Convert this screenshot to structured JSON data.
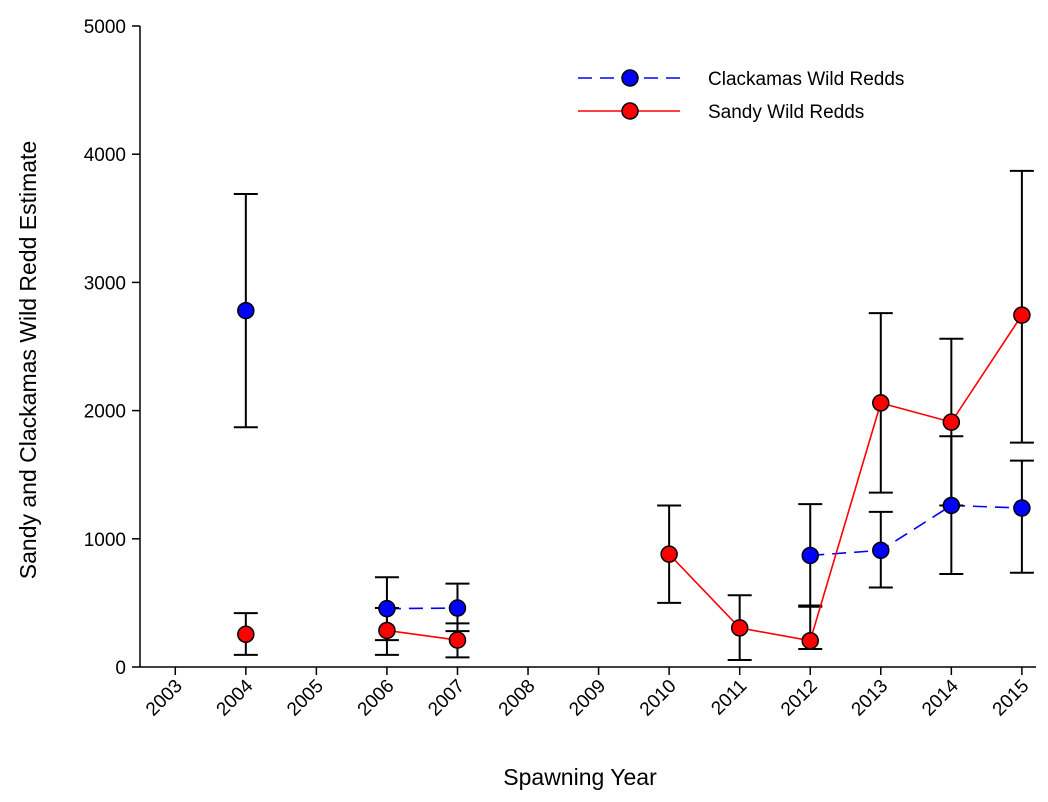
{
  "chart_data": {
    "type": "line",
    "x_label": "Spawning Year",
    "y_label": "Sandy and Clackamas Wild Redd Estimate",
    "x": [
      2003,
      2004,
      2005,
      2006,
      2007,
      2008,
      2009,
      2010,
      2011,
      2012,
      2013,
      2014,
      2015
    ],
    "xlim": [
      2002.5,
      2015.2
    ],
    "xticks": [
      2003,
      2004,
      2005,
      2006,
      2007,
      2008,
      2009,
      2010,
      2011,
      2012,
      2013,
      2014,
      2015
    ],
    "ylim": [
      0,
      5000
    ],
    "yticks": [
      0,
      1000,
      2000,
      3000,
      4000,
      5000
    ],
    "grid": false,
    "legend": "upper right",
    "series": [
      {
        "name": "Clackamas Wild Redds",
        "color": "#0000ff",
        "line_style": "dashed",
        "values": [
          null,
          2780,
          null,
          455,
          460,
          null,
          null,
          null,
          null,
          870,
          910,
          1260,
          1240
        ],
        "lower": [
          null,
          1870,
          null,
          210,
          280,
          null,
          null,
          null,
          null,
          470,
          620,
          725,
          735
        ],
        "upper": [
          null,
          3690,
          null,
          700,
          650,
          null,
          null,
          null,
          null,
          1270,
          1210,
          1800,
          1610
        ]
      },
      {
        "name": "Sandy Wild Redds",
        "color": "#ff0000",
        "line_style": "solid",
        "values": [
          null,
          255,
          null,
          285,
          210,
          null,
          null,
          880,
          305,
          205,
          2060,
          1910,
          2745
        ],
        "lower": [
          null,
          95,
          null,
          95,
          75,
          null,
          null,
          500,
          55,
          140,
          1360,
          1260,
          1750
        ],
        "upper": [
          null,
          420,
          null,
          460,
          340,
          null,
          null,
          1260,
          560,
          480,
          2760,
          2560,
          3870
        ]
      }
    ]
  }
}
